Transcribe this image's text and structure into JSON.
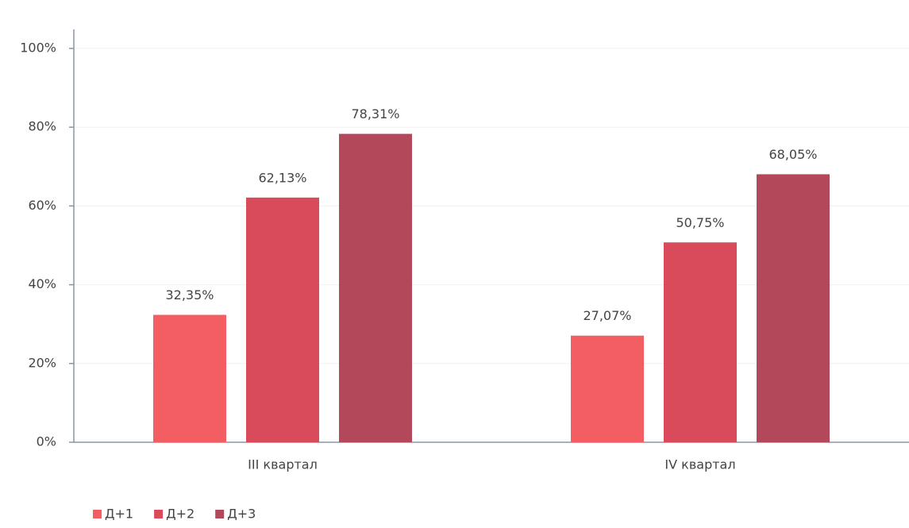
{
  "chart_data": {
    "type": "bar",
    "categories": [
      "III квартал",
      "IV квартал"
    ],
    "series": [
      {
        "name": "Д+1",
        "color": "#f35e62",
        "values": [
          32.35,
          27.07
        ],
        "value_labels": [
          "32,35%",
          "27,07%"
        ]
      },
      {
        "name": "Д+2",
        "color": "#d94a5a",
        "values": [
          62.13,
          50.75
        ],
        "value_labels": [
          "62,13%",
          "50,75%"
        ]
      },
      {
        "name": "Д+3",
        "color": "#b3485a",
        "values": [
          78.31,
          68.05
        ],
        "value_labels": [
          "78,31%",
          "68,05%"
        ]
      }
    ],
    "ylim": [
      0,
      100
    ],
    "yticks": [
      {
        "value": 0,
        "label": "0%"
      },
      {
        "value": 20,
        "label": "20%"
      },
      {
        "value": 40,
        "label": "40%"
      },
      {
        "value": 60,
        "label": "60%"
      },
      {
        "value": 80,
        "label": "80%"
      },
      {
        "value": 100,
        "label": "100%"
      }
    ],
    "grid": true,
    "legend": "bottom-left"
  }
}
